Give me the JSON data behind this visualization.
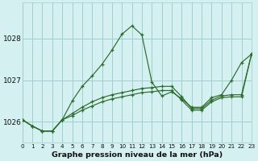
{
  "title": "Graphe pression niveau de la mer (hPa)",
  "bg_color": "#d4f0f0",
  "line_color": "#2d6b2d",
  "grid_color": "#9ecece",
  "xlim": [
    0,
    23
  ],
  "ylim": [
    1025.5,
    1028.85
  ],
  "yticks": [
    1026,
    1027,
    1028
  ],
  "series1": [
    1026.05,
    1025.9,
    1025.78,
    1025.78,
    1026.05,
    1026.5,
    1026.85,
    1027.1,
    1027.38,
    1027.72,
    1028.1,
    1028.3,
    1028.08,
    1026.95,
    1026.62,
    1026.72,
    1026.55,
    1026.35,
    1026.35,
    1026.58,
    1026.65,
    1027.0,
    1027.42,
    1027.62
  ],
  "series2": [
    1026.05,
    1025.9,
    1025.78,
    1025.78,
    1026.05,
    1026.2,
    1026.35,
    1026.48,
    1026.58,
    1026.65,
    1026.7,
    1026.75,
    1026.8,
    1026.82,
    1026.85,
    1026.85,
    1026.6,
    1026.32,
    1026.32,
    1026.52,
    1026.62,
    1026.65,
    1026.65,
    1027.62
  ],
  "series3": [
    1026.05,
    1025.9,
    1025.78,
    1025.78,
    1026.05,
    1026.15,
    1026.28,
    1026.38,
    1026.48,
    1026.55,
    1026.6,
    1026.65,
    1026.7,
    1026.72,
    1026.75,
    1026.75,
    1026.52,
    1026.28,
    1026.28,
    1026.48,
    1026.58,
    1026.6,
    1026.6,
    1027.62
  ]
}
